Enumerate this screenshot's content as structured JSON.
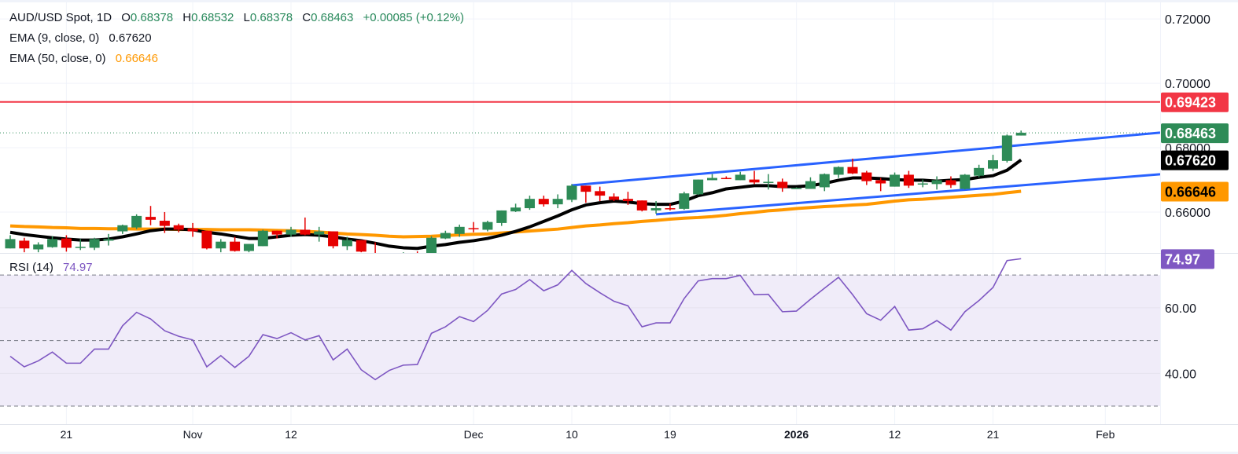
{
  "header": {
    "symbol": "AUD/USD Spot, 1D",
    "o_label": "O",
    "o": "0.68378",
    "h_label": "H",
    "h": "0.68532",
    "l_label": "L",
    "l": "0.68378",
    "c_label": "C",
    "c": "0.68463",
    "change": "+0.00085 (+0.12%)"
  },
  "indicators": {
    "ema9": {
      "label": "EMA (9, close, 0)",
      "value": "0.67620"
    },
    "ema50": {
      "label": "EMA (50, close, 0)",
      "value": "0.66646"
    },
    "rsi": {
      "label": "RSI (14)",
      "value": "74.97"
    }
  },
  "colors": {
    "up": "#2e8b57",
    "down": "#e60000",
    "ema9": "#000000",
    "ema50": "#ff9800",
    "trendline": "#2962ff",
    "resistance": "#f23645",
    "rsi": "#7e57c2",
    "rsi_band": "#f0ecf9"
  },
  "chart_data": {
    "type": "candlestick",
    "title": "AUD/USD Spot, 1D",
    "ylim": [
      0.6473,
      0.7259
    ],
    "y_ticks": [
      "0.72000",
      "0.70000",
      "0.68000",
      "0.66000"
    ],
    "grid": true,
    "x_ticks": [
      {
        "label": "21",
        "date": "2025-10-21"
      },
      {
        "label": "Nov",
        "date": "2025-11-03"
      },
      {
        "label": "12",
        "date": "2025-11-12"
      },
      {
        "label": "Dec",
        "date": "2025-12-01"
      },
      {
        "label": "10",
        "date": "2025-12-10"
      },
      {
        "label": "19",
        "date": "2025-12-19"
      },
      {
        "label": "2026",
        "date": "2026-01-01"
      },
      {
        "label": "12",
        "date": "2026-01-12"
      },
      {
        "label": "21",
        "date": "2026-01-21"
      },
      {
        "label": "Feb",
        "date": "2026-02-02"
      }
    ],
    "candles": [
      [
        "2025-10-15",
        0.6487,
        0.6528,
        0.6487,
        0.6516
      ],
      [
        "2025-10-16",
        0.6511,
        0.652,
        0.6475,
        0.6487
      ],
      [
        "2025-10-17",
        0.6484,
        0.6506,
        0.6475,
        0.6499
      ],
      [
        "2025-10-20",
        0.6491,
        0.6525,
        0.6489,
        0.6516
      ],
      [
        "2025-10-21",
        0.6518,
        0.6528,
        0.6477,
        0.6489
      ],
      [
        "2025-10-22",
        0.6491,
        0.6516,
        0.6482,
        0.6492
      ],
      [
        "2025-10-23",
        0.6489,
        0.652,
        0.6482,
        0.6516
      ],
      [
        "2025-10-24",
        0.6511,
        0.6532,
        0.6496,
        0.6516
      ],
      [
        "2025-10-27",
        0.654,
        0.6561,
        0.6532,
        0.6559
      ],
      [
        "2025-10-28",
        0.6552,
        0.6593,
        0.6547,
        0.6588
      ],
      [
        "2025-10-29",
        0.6585,
        0.6619,
        0.6559,
        0.6576
      ],
      [
        "2025-10-30",
        0.6573,
        0.66,
        0.6535,
        0.6557
      ],
      [
        "2025-10-31",
        0.6559,
        0.6564,
        0.6537,
        0.6545
      ],
      [
        "2025-11-03",
        0.6549,
        0.6566,
        0.6523,
        0.654
      ],
      [
        "2025-11-04",
        0.6542,
        0.6542,
        0.6484,
        0.6487
      ],
      [
        "2025-11-05",
        0.6487,
        0.6516,
        0.6475,
        0.6508
      ],
      [
        "2025-11-06",
        0.6508,
        0.6523,
        0.6477,
        0.6479
      ],
      [
        "2025-11-07",
        0.6479,
        0.6501,
        0.6475,
        0.6501
      ],
      [
        "2025-11-10",
        0.6494,
        0.6545,
        0.6494,
        0.6542
      ],
      [
        "2025-11-11",
        0.6542,
        0.6542,
        0.6518,
        0.653
      ],
      [
        "2025-11-12",
        0.653,
        0.6554,
        0.6523,
        0.6545
      ],
      [
        "2025-11-13",
        0.6545,
        0.6583,
        0.6528,
        0.653
      ],
      [
        "2025-11-14",
        0.653,
        0.6554,
        0.6508,
        0.654
      ],
      [
        "2025-11-17",
        0.654,
        0.654,
        0.6487,
        0.6494
      ],
      [
        "2025-11-18",
        0.6494,
        0.6523,
        0.6482,
        0.6513
      ],
      [
        "2025-11-19",
        0.6513,
        0.6513,
        0.6475,
        0.6477
      ],
      [
        "2025-11-20",
        0.647,
        0.6506,
        0.645,
        0.6455
      ],
      [
        "2025-11-21",
        0.6455,
        0.647,
        0.644,
        0.6462
      ],
      [
        "2025-11-24",
        0.6462,
        0.6475,
        0.6448,
        0.6468
      ],
      [
        "2025-11-25",
        0.6468,
        0.6478,
        0.6452,
        0.646
      ],
      [
        "2025-11-26",
        0.646,
        0.6525,
        0.6455,
        0.652
      ],
      [
        "2025-11-27",
        0.6518,
        0.6542,
        0.6516,
        0.6535
      ],
      [
        "2025-11-28",
        0.6532,
        0.6561,
        0.6523,
        0.6554
      ],
      [
        "2025-12-01",
        0.655,
        0.6569,
        0.6537,
        0.6547
      ],
      [
        "2025-12-02",
        0.6545,
        0.6573,
        0.654,
        0.6569
      ],
      [
        "2025-12-03",
        0.6566,
        0.6605,
        0.6557,
        0.6605
      ],
      [
        "2025-12-04",
        0.6602,
        0.6626,
        0.66,
        0.6614
      ],
      [
        "2025-12-05",
        0.6612,
        0.6651,
        0.6607,
        0.6641
      ],
      [
        "2025-12-08",
        0.6641,
        0.6651,
        0.6617,
        0.6624
      ],
      [
        "2025-12-09",
        0.6624,
        0.6655,
        0.6612,
        0.6641
      ],
      [
        "2025-12-10",
        0.6638,
        0.6687,
        0.6631,
        0.6682
      ],
      [
        "2025-12-11",
        0.6682,
        0.6682,
        0.6629,
        0.6663
      ],
      [
        "2025-12-12",
        0.6665,
        0.6679,
        0.6634,
        0.6651
      ],
      [
        "2025-12-15",
        0.6648,
        0.6658,
        0.6634,
        0.6638
      ],
      [
        "2025-12-16",
        0.6641,
        0.6663,
        0.6622,
        0.6634
      ],
      [
        "2025-12-17",
        0.6636,
        0.6636,
        0.6602,
        0.6605
      ],
      [
        "2025-12-18",
        0.6605,
        0.6634,
        0.6595,
        0.6612
      ],
      [
        "2025-12-19",
        0.6612,
        0.6626,
        0.6605,
        0.661
      ],
      [
        "2025-12-22",
        0.661,
        0.6663,
        0.6607,
        0.6658
      ],
      [
        "2025-12-23",
        0.6655,
        0.6701,
        0.6653,
        0.6701
      ],
      [
        "2025-12-24",
        0.6699,
        0.6718,
        0.6699,
        0.6706
      ],
      [
        "2025-12-25",
        0.6706,
        0.6711,
        0.6703,
        0.6704
      ],
      [
        "2025-12-26",
        0.6699,
        0.6725,
        0.6699,
        0.6716
      ],
      [
        "2025-12-29",
        0.6701,
        0.6728,
        0.6687,
        0.6692
      ],
      [
        "2025-12-30",
        0.6692,
        0.6718,
        0.667,
        0.6694
      ],
      [
        "2025-12-31",
        0.6694,
        0.6704,
        0.6663,
        0.6675
      ],
      [
        "2026-01-01",
        0.6674,
        0.6677,
        0.6672,
        0.6675
      ],
      [
        "2026-01-02",
        0.6672,
        0.6708,
        0.6672,
        0.6696
      ],
      [
        "2026-01-05",
        0.6677,
        0.672,
        0.6665,
        0.6718
      ],
      [
        "2026-01-06",
        0.6716,
        0.6742,
        0.6706,
        0.674
      ],
      [
        "2026-01-07",
        0.674,
        0.6766,
        0.6718,
        0.672
      ],
      [
        "2026-01-08",
        0.6723,
        0.6728,
        0.6684,
        0.6696
      ],
      [
        "2026-01-09",
        0.6699,
        0.6706,
        0.6665,
        0.6689
      ],
      [
        "2026-01-12",
        0.6679,
        0.6723,
        0.6679,
        0.6716
      ],
      [
        "2026-01-13",
        0.6716,
        0.6728,
        0.6675,
        0.6682
      ],
      [
        "2026-01-14",
        0.6687,
        0.6701,
        0.6677,
        0.6689
      ],
      [
        "2026-01-15",
        0.6687,
        0.6711,
        0.667,
        0.6699
      ],
      [
        "2026-01-16",
        0.6699,
        0.6711,
        0.6675,
        0.6684
      ],
      [
        "2026-01-19",
        0.6672,
        0.6718,
        0.667,
        0.6716
      ],
      [
        "2026-01-20",
        0.6713,
        0.6747,
        0.6708,
        0.6737
      ],
      [
        "2026-01-21",
        0.6735,
        0.6778,
        0.6728,
        0.6761
      ],
      [
        "2026-01-22",
        0.6759,
        0.6841,
        0.6754,
        0.6838
      ],
      [
        "2026-01-23",
        0.68378,
        0.68532,
        0.68378,
        0.68463
      ]
    ],
    "ema9": [
      0.6537,
      0.653,
      0.6525,
      0.652,
      0.6516,
      0.6513,
      0.6513,
      0.6516,
      0.6523,
      0.6532,
      0.6542,
      0.6547,
      0.6547,
      0.6545,
      0.6537,
      0.6532,
      0.6525,
      0.6518,
      0.6518,
      0.6523,
      0.6528,
      0.653,
      0.6528,
      0.6523,
      0.6516,
      0.6511,
      0.6503,
      0.6494,
      0.6489,
      0.6487,
      0.6494,
      0.6499,
      0.6506,
      0.6511,
      0.6518,
      0.6528,
      0.654,
      0.6554,
      0.6571,
      0.6588,
      0.6607,
      0.6622,
      0.6629,
      0.6634,
      0.6631,
      0.6626,
      0.6624,
      0.6624,
      0.6634,
      0.6651,
      0.666,
      0.6672,
      0.6677,
      0.6682,
      0.6682,
      0.6679,
      0.6679,
      0.6682,
      0.6689,
      0.6699,
      0.6706,
      0.6706,
      0.6704,
      0.6701,
      0.6699,
      0.6699,
      0.6696,
      0.6699,
      0.6701,
      0.6708,
      0.6713,
      0.673,
      0.6762
    ],
    "ema50": [
      0.6557,
      0.6555,
      0.6554,
      0.6552,
      0.6551,
      0.6549,
      0.6549,
      0.6548,
      0.6548,
      0.6547,
      0.6547,
      0.6547,
      0.6546,
      0.6546,
      0.6546,
      0.6545,
      0.6545,
      0.6545,
      0.6544,
      0.6543,
      0.6542,
      0.654,
      0.6538,
      0.6535,
      0.6532,
      0.653,
      0.6528,
      0.6525,
      0.6523,
      0.6524,
      0.6525,
      0.6527,
      0.6529,
      0.6531,
      0.6532,
      0.6535,
      0.6538,
      0.6541,
      0.6544,
      0.6547,
      0.6552,
      0.6557,
      0.656,
      0.6564,
      0.6567,
      0.6571,
      0.6574,
      0.6578,
      0.6581,
      0.6583,
      0.6586,
      0.659,
      0.6595,
      0.6599,
      0.6604,
      0.6607,
      0.6611,
      0.6614,
      0.6617,
      0.6619,
      0.6622,
      0.6624,
      0.6629,
      0.6634,
      0.6638,
      0.664,
      0.6643,
      0.6646,
      0.6649,
      0.6652,
      0.6655,
      0.666,
      0.66646
    ],
    "horizontal_line": 0.69423,
    "trendlines": [
      {
        "from": [
          "2025-12-10",
          0.6683
        ],
        "to": [
          "2026-01-23",
          0.6808
        ],
        "extend": "right"
      },
      {
        "from": [
          "2025-12-18",
          0.6593
        ],
        "to": [
          "2026-01-23",
          0.6683
        ],
        "extend": "right"
      }
    ],
    "last_price": 0.68463,
    "price_labels": [
      {
        "text": "0.69423",
        "value": 0.69423,
        "bg": "#f23645",
        "fg": "#ffffff"
      },
      {
        "text": "0.68463",
        "value": 0.68463,
        "bg": "#2e8b57",
        "fg": "#ffffff"
      },
      {
        "text": "0.67620",
        "value": 0.6762,
        "bg": "#000000",
        "fg": "#ffffff"
      },
      {
        "text": "0.66646",
        "value": 0.66646,
        "bg": "#ff9800",
        "fg": "#000000"
      }
    ],
    "rsi": {
      "ylim": [
        24.5,
        76.5
      ],
      "levels": [
        70,
        50,
        30
      ],
      "y_ticks": [
        {
          "text": "60.00",
          "value": 60
        },
        {
          "text": "40.00",
          "value": 40
        }
      ],
      "last_label": "74.97",
      "values": [
        45.2,
        42,
        43.8,
        46.5,
        43.1,
        43.1,
        47.4,
        47.4,
        54.5,
        58.6,
        56.6,
        53,
        51.3,
        50.2,
        42,
        45.4,
        41.8,
        45.2,
        51.8,
        50.6,
        52.4,
        50.2,
        51.5,
        44.1,
        47.4,
        41.1,
        38.1,
        40.9,
        42.5,
        42.7,
        52.2,
        54.2,
        57.3,
        55.8,
        59.2,
        64.2,
        65.6,
        68.6,
        65.2,
        67,
        71.4,
        67.4,
        64.6,
        62,
        60.6,
        54.2,
        55.4,
        55.4,
        62.8,
        68.2,
        68.9,
        68.9,
        69.9,
        64,
        64.1,
        58.8,
        59,
        62.6,
        66,
        69.3,
        64,
        58.2,
        56.2,
        60.4,
        53.2,
        53.6,
        56.1,
        53.2,
        58.8,
        62.2,
        66.2,
        74.4,
        74.97
      ]
    }
  }
}
